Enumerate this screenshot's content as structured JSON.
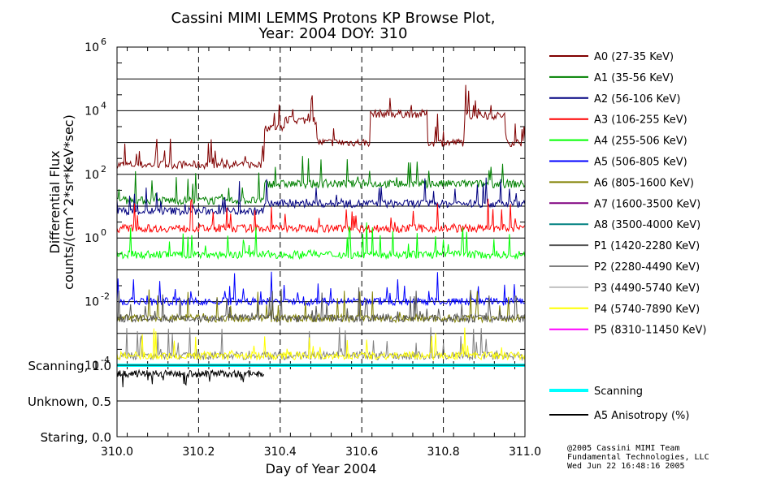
{
  "chart_data": {
    "type": "line",
    "title": "Cassini MIMI LEMMS Protons KP Browse Plot,",
    "subtitle": "Year: 2004 DOY: 310",
    "xlabel": "Day of Year 2004",
    "ylabel": "Differential Flux",
    "ylabel2": "counts/(cm^2*sr*KeV*sec)",
    "xlim": [
      310.0,
      311.0
    ],
    "ylim": [
      0.0001,
      1000000
    ],
    "yscale": "log",
    "x_ticks": [
      "310.0",
      "310.2",
      "310.4",
      "310.6",
      "310.8",
      "311.0"
    ],
    "y_tick_base": "10",
    "y_tick_exponents": [
      "6",
      "4",
      "2",
      "0",
      "-2",
      "-4"
    ],
    "grid": "major (solid horizontal, dashed vertical)",
    "legend_position": "right",
    "series": [
      {
        "name": "A0 (27-35 KeV)",
        "color": "#800000",
        "segments": [
          {
            "x": [
              310.0,
              310.36
            ],
            "y": 200
          },
          {
            "x": [
              310.36,
              310.41
            ],
            "y": 3000
          },
          {
            "x": [
              310.41,
              310.49
            ],
            "y": 5000
          },
          {
            "x": [
              310.49,
              310.62
            ],
            "y": 1000
          },
          {
            "x": [
              310.62,
              310.76
            ],
            "y": 8000
          },
          {
            "x": [
              310.76,
              310.85
            ],
            "y": 1000
          },
          {
            "x": [
              310.85,
              310.95
            ],
            "y": 7000
          },
          {
            "x": [
              310.95,
              311.0
            ],
            "y": 1000
          }
        ]
      },
      {
        "name": "A1 (35-56 KeV)",
        "color": "#008000",
        "segments": [
          {
            "x": [
              310.0,
              310.36
            ],
            "y": 15
          },
          {
            "x": [
              310.36,
              311.0
            ],
            "y": 50
          }
        ]
      },
      {
        "name": "A2 (56-106 KeV)",
        "color": "#000080",
        "segments": [
          {
            "x": [
              310.0,
              310.36
            ],
            "y": 7
          },
          {
            "x": [
              310.36,
              311.0
            ],
            "y": 12
          }
        ]
      },
      {
        "name": "A3 (106-255 KeV)",
        "color": "#ff0000",
        "segments": [
          {
            "x": [
              310.0,
              311.0
            ],
            "y": 2
          }
        ]
      },
      {
        "name": "A4 (255-506 KeV)",
        "color": "#00ff00",
        "segments": [
          {
            "x": [
              310.0,
              311.0
            ],
            "y": 0.3
          }
        ]
      },
      {
        "name": "A5 (506-805 KeV)",
        "color": "#0000ff",
        "segments": [
          {
            "x": [
              310.0,
              311.0
            ],
            "y": 0.01
          }
        ]
      },
      {
        "name": "A6 (805-1600 KeV)",
        "color": "#808000",
        "segments": [
          {
            "x": [
              310.0,
              311.0
            ],
            "y": 0.003
          }
        ]
      },
      {
        "name": "A7 (1600-3500 KeV)",
        "color": "#800080",
        "segments": []
      },
      {
        "name": "A8 (3500-4000 KeV)",
        "color": "#008080",
        "segments": []
      },
      {
        "name": "P1 (1420-2280 KeV)",
        "color": "#555555",
        "segments": [
          {
            "x": [
              310.0,
              311.0
            ],
            "y": 0.003
          }
        ]
      },
      {
        "name": "P2 (2280-4490 KeV)",
        "color": "#808080",
        "segments": [
          {
            "x": [
              310.0,
              311.0
            ],
            "y": 0.0002
          }
        ]
      },
      {
        "name": "P3 (4490-5740 KeV)",
        "color": "#c0c0c0",
        "segments": []
      },
      {
        "name": "P4 (5740-7890 KeV)",
        "color": "#ffff00",
        "segments": [
          {
            "x": [
              310.0,
              311.0
            ],
            "y": 0.0002
          }
        ]
      },
      {
        "name": "P5 (8310-11450 KeV)",
        "color": "#ff00ff",
        "segments": []
      }
    ],
    "lower_panel": {
      "y_labels": [
        "Scanning, 1.0",
        "Unknown, 0.5",
        "Staring, 0.0"
      ],
      "ylim": [
        0,
        1
      ],
      "series": [
        {
          "name": "Scanning",
          "color": "#00ffff",
          "value": 1.0,
          "x": [
            310.0,
            311.0
          ]
        },
        {
          "name": "A5 Anisotropy (%)",
          "color": "#000000",
          "value": 0.88,
          "x": [
            310.0,
            310.36
          ]
        }
      ]
    }
  },
  "footer": {
    "line1": "@2005 Cassini MIMI Team",
    "line2": "Fundamental Technologies, LLC",
    "line3": "Wed Jun 22 16:48:16 2005"
  }
}
